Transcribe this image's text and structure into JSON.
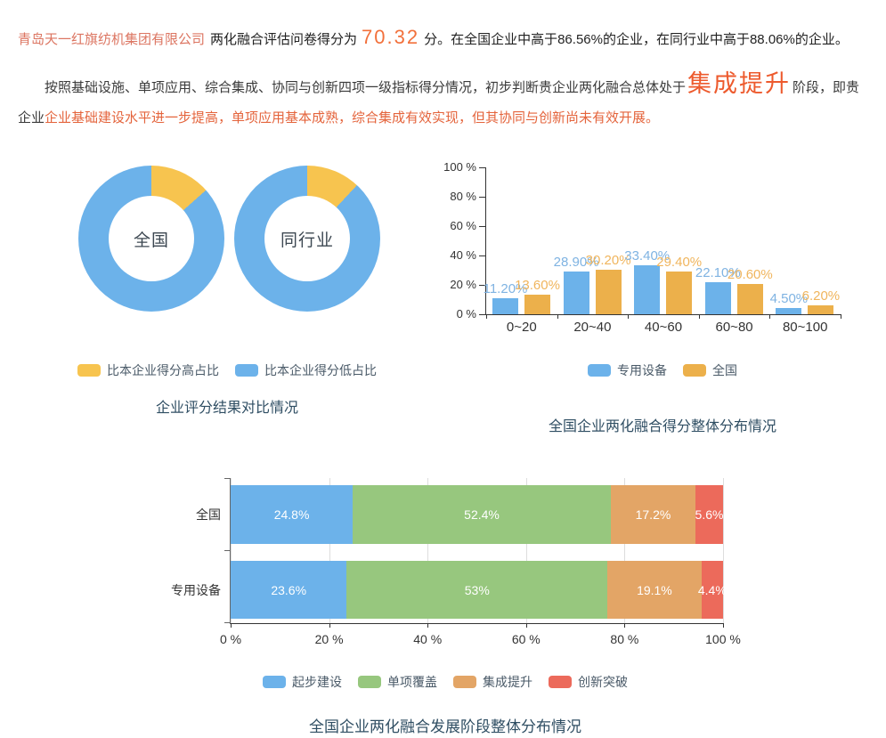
{
  "report": {
    "para1": {
      "company": "青岛天一红旗纺机集团有限公司",
      "mid": "两化融合评估问卷得分为",
      "score": "70.32",
      "tail": "分。在全国企业中高于86.56%的企业，在同行业中高于88.06%的企业。"
    },
    "para2": {
      "lead": "按照基础设施、单项应用、综合集成、协同与创新四项一级指标得分情况，初步判断贵企业两化融合总体处于",
      "stage": "集成提升",
      "mid": "阶段，即贵企业",
      "detail": "企业基础建设水平进一步提高，单项应用基本成熟，综合集成有效实现，但其协同与创新尚未有效开展。"
    }
  },
  "chart_data": [
    {
      "id": "donut-national",
      "type": "pie",
      "title": "企业评分结果对比情况",
      "center_label": "全国",
      "slices": [
        {
          "name": "比本企业得分高占比",
          "value": 13.44,
          "color": "#f7c44f"
        },
        {
          "name": "比本企业得分低占比",
          "value": 86.56,
          "color": "#6cb2ea"
        }
      ]
    },
    {
      "id": "donut-industry",
      "type": "pie",
      "center_label": "同行业",
      "slices": [
        {
          "name": "比本企业得分高占比",
          "value": 11.94,
          "color": "#f7c44f"
        },
        {
          "name": "比本企业得分低占比",
          "value": 88.06,
          "color": "#6cb2ea"
        }
      ]
    },
    {
      "id": "score-distribution",
      "type": "bar",
      "title": "全国企业两化融合得分整体分布情况",
      "categories": [
        "0~20",
        "20~40",
        "40~60",
        "60~80",
        "80~100"
      ],
      "series": [
        {
          "name": "专用设备",
          "color": "#6cb2ea",
          "label_color": "#7fb3e2",
          "values": [
            11.2,
            28.9,
            33.4,
            22.1,
            4.5
          ],
          "labels": [
            "11.20%",
            "28.90%",
            "33.40%",
            "22.10%",
            "4.50%"
          ]
        },
        {
          "name": "全国",
          "color": "#ecb04b",
          "label_color": "#f0b55d",
          "values": [
            13.6,
            30.2,
            29.4,
            20.6,
            6.2
          ],
          "labels": [
            "13.60%",
            "30.20%",
            "29.40%",
            "20.60%",
            "6.20%"
          ]
        }
      ],
      "y_ticks": [
        "100 %",
        "80 %",
        "60 %",
        "40 %",
        "20 %",
        "0 %"
      ],
      "ylim": [
        0,
        100
      ],
      "grid": false,
      "legend_position": "bottom"
    },
    {
      "id": "stage-distribution",
      "type": "stacked-bar-horizontal",
      "title": "全国企业两化融合发展阶段整体分布情况",
      "categories": [
        "全国",
        "专用设备"
      ],
      "series": [
        {
          "name": "起步建设",
          "color": "#6cb2ea",
          "values": [
            24.8,
            23.6
          ],
          "labels": [
            "24.8%",
            "23.6%"
          ]
        },
        {
          "name": "单项覆盖",
          "color": "#97c77e",
          "values": [
            52.4,
            53
          ],
          "labels": [
            "52.4%",
            "53%"
          ]
        },
        {
          "name": "集成提升",
          "color": "#e3a566",
          "values": [
            17.2,
            19.1
          ],
          "labels": [
            "17.2%",
            "19.1%"
          ]
        },
        {
          "name": "创新突破",
          "color": "#ec6a5b",
          "values": [
            5.6,
            4.4
          ],
          "labels": [
            "5.6%",
            "4.4%"
          ]
        }
      ],
      "x_ticks": [
        "0 %",
        "20 %",
        "40 %",
        "60 %",
        "80 %",
        "100 %"
      ],
      "xlim": [
        0,
        100
      ],
      "grid": true,
      "legend_position": "bottom"
    }
  ]
}
